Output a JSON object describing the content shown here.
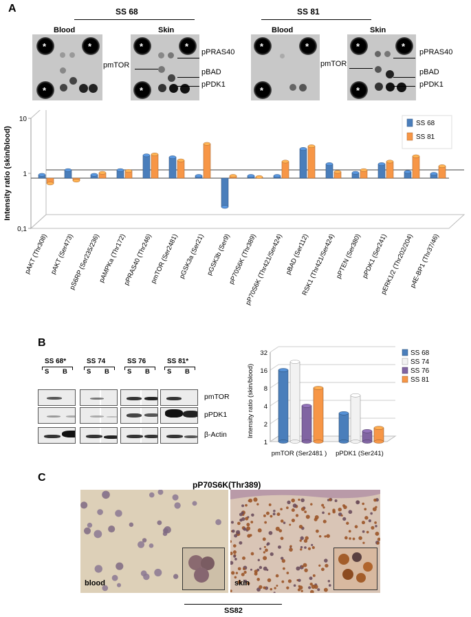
{
  "panelA": {
    "letter": "A",
    "group1": {
      "title": "SS 68",
      "blood": "Blood",
      "skin": "Skin"
    },
    "group2": {
      "title": "SS 81",
      "blood": "Blood",
      "skin": "Skin"
    },
    "marker_pmtor": "pmTOR",
    "marker_pmtor_2": "pmTOR",
    "markers_right_1": [
      "pPRAS40",
      "pBAD",
      "pPDK1"
    ],
    "markers_right_2": [
      "pPRAS40",
      "pBAD",
      "pPDK1"
    ],
    "star": "*"
  },
  "panelB": {
    "letter": "B",
    "samples": [
      "SS 68*",
      "SS 74",
      "SS 76",
      "SS 81*"
    ],
    "lanes": [
      "S",
      "B"
    ],
    "rows": [
      "pmTOR",
      "pPDK1",
      "β-Actin"
    ]
  },
  "panelC": {
    "letter": "C",
    "title": "pP70S6K(Thr389)",
    "left_label": "blood",
    "right_label": "skin",
    "bottom_label": "SS82"
  },
  "chart_data": [
    {
      "type": "bar",
      "ylabel": "Intensity ratio (skin/blood)",
      "yscale": "log",
      "ylim": [
        0.1,
        10
      ],
      "yticks": [
        "0,1",
        "1",
        "10"
      ],
      "categories": [
        "pAKT (Thr308)",
        "pAKT (Ser473)",
        "pS6RP (Ser235/236)",
        "pAMPKa (Thr172)",
        "pPRAS40 (Thr246)",
        "pmTOR (Ser2481)",
        "pGSK3a (Ser21)",
        "pGSK3b (Ser9)",
        "pP70S6K (Thr389)",
        "pP70S6K (Thr421/Ser424)",
        "pBAD (Ser112)",
        "RSK1 (Thr421/Ser424)",
        "pPTEN (Ser380)",
        "pPDK1 (Ser241)",
        "pERK1/2 (Thr202/204)",
        "p4E-BP1 (Thr37/46)"
      ],
      "series": [
        {
          "name": "SS 68",
          "color": "#4a7ebb",
          "values": [
            1.15,
            1.4,
            1.15,
            1.4,
            2.6,
            2.4,
            1.1,
            0.3,
            1.1,
            1.1,
            3.4,
            1.8,
            1.25,
            1.8,
            1.3,
            1.2
          ]
        },
        {
          "name": "SS 81",
          "color": "#f79646",
          "values": [
            0.8,
            0.9,
            1.25,
            1.35,
            2.7,
            2.1,
            4.2,
            1.1,
            1.05,
            2.0,
            3.8,
            1.3,
            1.4,
            2.0,
            2.5,
            1.65
          ]
        }
      ],
      "legend": "top-right",
      "grid": false
    },
    {
      "type": "bar",
      "ylabel": "Intensity ratio (skin/blood)",
      "yscale": "log2",
      "ylim": [
        1,
        32
      ],
      "yticks": [
        "1",
        "2",
        "4",
        "8",
        "16",
        "32"
      ],
      "categories": [
        "pmTOR (Ser2481 )",
        "pPDK1 (Ser241)"
      ],
      "series": [
        {
          "name": "SS 68",
          "color": "#4a7ebb",
          "values": [
            16,
            3
          ]
        },
        {
          "name": "SS 74",
          "color": "#f2f2f2",
          "values": [
            22,
            6
          ]
        },
        {
          "name": "SS 76",
          "color": "#8064a2",
          "values": [
            4,
            1.5
          ]
        },
        {
          "name": "SS 81",
          "color": "#f79646",
          "values": [
            8,
            1.7
          ]
        }
      ],
      "legend": "top-right",
      "grid": true
    }
  ]
}
